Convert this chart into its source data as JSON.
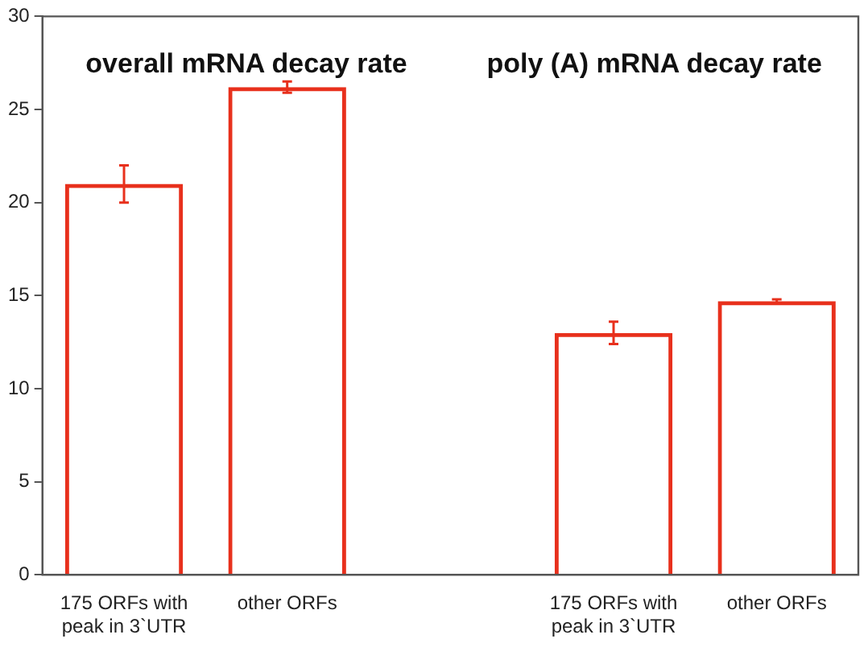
{
  "chart_data": {
    "type": "bar",
    "categories": [
      "175 ORFs with peak in 3`UTR",
      "other ORFs",
      null,
      "175 ORFs with peak in 3`UTR",
      "other ORFs"
    ],
    "values": [
      21.0,
      26.2,
      null,
      13.0,
      14.7
    ],
    "errors": [
      [
        20.0,
        22.0
      ],
      [
        25.9,
        26.5
      ],
      null,
      [
        12.4,
        13.6
      ],
      [
        14.6,
        14.8
      ]
    ],
    "color": "#e8301c",
    "ylim": [
      0,
      30
    ],
    "yticks": [
      0,
      5,
      10,
      15,
      20,
      25,
      30
    ],
    "annotations": [
      "overall mRNA decay rate",
      "poly (A) mRNA decay rate"
    ],
    "grid": false,
    "legend": false
  }
}
